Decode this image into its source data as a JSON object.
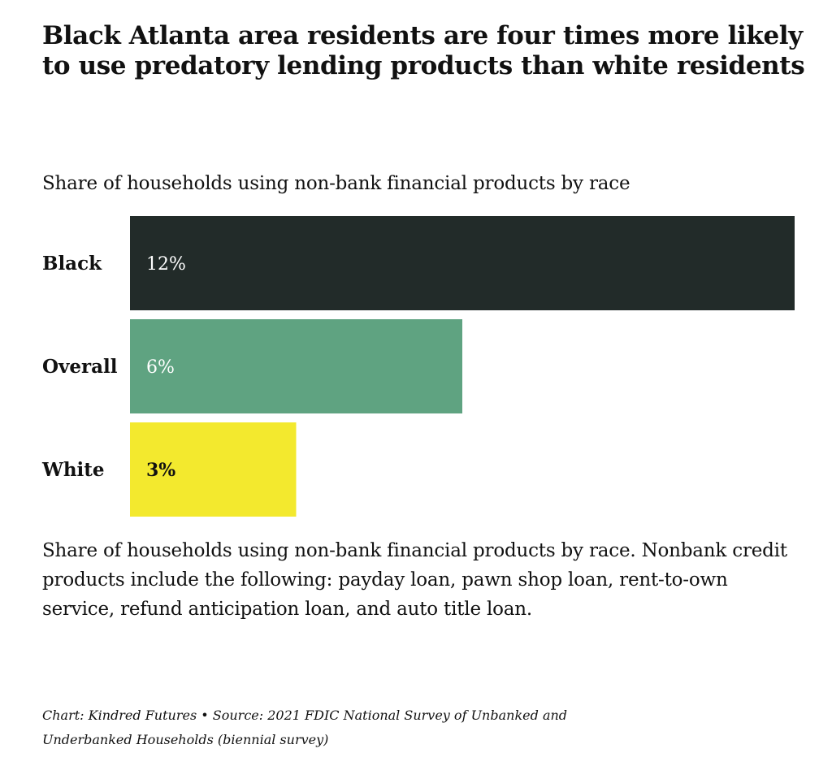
{
  "title": "Black Atlanta area residents are four times more likely to use predatory lending products than white residents",
  "chart_data": {
    "type": "bar",
    "orientation": "horizontal",
    "title": "Share of households using non-bank financial products by race",
    "categories": [
      "Black",
      "Overall",
      "White"
    ],
    "values": [
      12,
      6,
      3
    ],
    "value_labels": [
      "12%",
      "6%",
      "3%"
    ],
    "colors": [
      "#222b29",
      "#5fa381",
      "#f3e92e"
    ],
    "label_colors": [
      "#ffffff",
      "#ffffff",
      "#111111"
    ],
    "xlim": [
      0,
      12
    ],
    "grid": false,
    "legend": "none"
  },
  "note": "Share of households using non-bank financial products by race. Nonbank credit products include the following: payday loan, pawn shop loan, rent-to-own service, refund anticipation loan, and auto title loan.",
  "source": "Chart: Kindred Futures • Source: 2021 FDIC National Survey of Unbanked and Underbanked Households (biennial survey)"
}
